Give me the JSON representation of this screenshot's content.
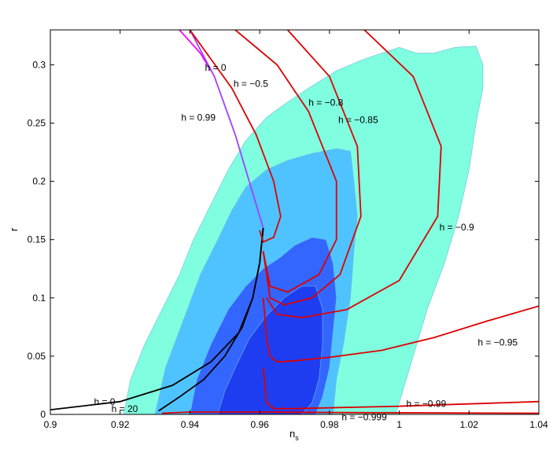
{
  "chart_data": {
    "type": "line",
    "title": "",
    "xlabel": {
      "base": "n",
      "sub": "s"
    },
    "ylabel": "r",
    "xlim": [
      0.9,
      1.04
    ],
    "ylim": [
      0,
      0.33
    ],
    "x_ticks": [
      "0.9",
      "0.92",
      "0.94",
      "0.96",
      "0.98",
      "1",
      "1.02",
      "1.04"
    ],
    "y_ticks": [
      "0",
      "0.05",
      "0.1",
      "0.15",
      "0.2",
      "0.25",
      "0.3"
    ],
    "grid": false,
    "confidence_regions": [
      {
        "level": "outer",
        "color": "#7fffe0",
        "points": [
          [
            0.921,
            0.0
          ],
          [
            0.923,
            0.03
          ],
          [
            0.927,
            0.06
          ],
          [
            0.932,
            0.09
          ],
          [
            0.937,
            0.12
          ],
          [
            0.941,
            0.15
          ],
          [
            0.946,
            0.18
          ],
          [
            0.951,
            0.21
          ],
          [
            0.956,
            0.235
          ],
          [
            0.962,
            0.255
          ],
          [
            0.968,
            0.268
          ],
          [
            0.974,
            0.28
          ],
          [
            0.982,
            0.295
          ],
          [
            0.99,
            0.305
          ],
          [
            0.997,
            0.312
          ],
          [
            1.0,
            0.315
          ],
          [
            1.005,
            0.31
          ],
          [
            1.01,
            0.31
          ],
          [
            1.016,
            0.315
          ],
          [
            1.022,
            0.316
          ],
          [
            1.024,
            0.3
          ],
          [
            1.024,
            0.28
          ],
          [
            1.022,
            0.25
          ],
          [
            1.02,
            0.21
          ],
          [
            1.017,
            0.17
          ],
          [
            1.013,
            0.13
          ],
          [
            1.008,
            0.09
          ],
          [
            1.004,
            0.05
          ],
          [
            1.001,
            0.02
          ],
          [
            0.999,
            0.0
          ]
        ]
      },
      {
        "level": "middle",
        "color": "#4fc3ff",
        "points": [
          [
            0.93,
            0.0
          ],
          [
            0.933,
            0.04
          ],
          [
            0.938,
            0.08
          ],
          [
            0.943,
            0.12
          ],
          [
            0.948,
            0.15
          ],
          [
            0.952,
            0.175
          ],
          [
            0.956,
            0.195
          ],
          [
            0.962,
            0.21
          ],
          [
            0.968,
            0.218
          ],
          [
            0.975,
            0.224
          ],
          [
            0.982,
            0.228
          ],
          [
            0.986,
            0.226
          ],
          [
            0.987,
            0.2
          ],
          [
            0.988,
            0.17
          ],
          [
            0.987,
            0.14
          ],
          [
            0.986,
            0.1
          ],
          [
            0.984,
            0.06
          ],
          [
            0.982,
            0.03
          ],
          [
            0.981,
            0.0
          ]
        ]
      },
      {
        "level": "inner-1",
        "color": "#3366ff",
        "points": [
          [
            0.94,
            0.0
          ],
          [
            0.942,
            0.03
          ],
          [
            0.946,
            0.06
          ],
          [
            0.951,
            0.09
          ],
          [
            0.956,
            0.11
          ],
          [
            0.961,
            0.125
          ],
          [
            0.966,
            0.135
          ],
          [
            0.97,
            0.145
          ],
          [
            0.975,
            0.152
          ],
          [
            0.979,
            0.15
          ],
          [
            0.981,
            0.13
          ],
          [
            0.982,
            0.1
          ],
          [
            0.981,
            0.07
          ],
          [
            0.98,
            0.04
          ],
          [
            0.978,
            0.015
          ],
          [
            0.976,
            0.0
          ]
        ]
      },
      {
        "level": "inner-2",
        "color": "#1f3df0",
        "points": [
          [
            0.948,
            0.0
          ],
          [
            0.95,
            0.02
          ],
          [
            0.953,
            0.04
          ],
          [
            0.957,
            0.065
          ],
          [
            0.962,
            0.085
          ],
          [
            0.967,
            0.1
          ],
          [
            0.972,
            0.11
          ],
          [
            0.976,
            0.11
          ],
          [
            0.978,
            0.09
          ],
          [
            0.978,
            0.06
          ],
          [
            0.977,
            0.03
          ],
          [
            0.975,
            0.01
          ],
          [
            0.972,
            0.0
          ]
        ]
      }
    ],
    "series": [
      {
        "name": "h = 0",
        "color": "#000000",
        "points": [
          [
            0.961,
            0.16
          ],
          [
            0.96,
            0.13
          ],
          [
            0.958,
            0.1
          ],
          [
            0.954,
            0.07
          ],
          [
            0.946,
            0.045
          ],
          [
            0.935,
            0.025
          ],
          [
            0.92,
            0.011
          ],
          [
            0.9,
            0.004
          ]
        ]
      },
      {
        "name": "h = 20",
        "color": "#000000",
        "points": [
          [
            0.961,
            0.16
          ],
          [
            0.96,
            0.13
          ],
          [
            0.958,
            0.1
          ],
          [
            0.955,
            0.075
          ],
          [
            0.95,
            0.05
          ],
          [
            0.944,
            0.03
          ],
          [
            0.937,
            0.015
          ],
          [
            0.931,
            0.003
          ]
        ]
      },
      {
        "name": "h = 0",
        "color": "#ff00ff",
        "points": [
          [
            0.937,
            0.33
          ],
          [
            0.943,
            0.31
          ],
          [
            0.946,
            0.295
          ]
        ]
      },
      {
        "name": "h = 0.99",
        "color": "#a040ff",
        "points": [
          [
            0.94,
            0.33
          ],
          [
            0.947,
            0.29
          ],
          [
            0.953,
            0.24
          ],
          [
            0.958,
            0.19
          ],
          [
            0.961,
            0.16
          ]
        ]
      },
      {
        "name": "h = −0.5",
        "color": "#dd0000",
        "points": [
          [
            0.94,
            0.33
          ],
          [
            0.952,
            0.28
          ],
          [
            0.959,
            0.24
          ],
          [
            0.964,
            0.2
          ],
          [
            0.966,
            0.17
          ],
          [
            0.964,
            0.152
          ],
          [
            0.961,
            0.148
          ],
          [
            0.96,
            0.158
          ]
        ]
      },
      {
        "name": "h = −0.8",
        "color": "#dd0000",
        "points": [
          [
            0.953,
            0.33
          ],
          [
            0.965,
            0.3
          ],
          [
            0.974,
            0.26
          ],
          [
            0.982,
            0.2
          ],
          [
            0.982,
            0.15
          ],
          [
            0.977,
            0.12
          ],
          [
            0.968,
            0.105
          ],
          [
            0.963,
            0.11
          ],
          [
            0.961,
            0.14
          ]
        ]
      },
      {
        "name": "h = −0.85",
        "color": "#dd0000",
        "points": [
          [
            0.968,
            0.33
          ],
          [
            0.98,
            0.29
          ],
          [
            0.988,
            0.23
          ],
          [
            0.989,
            0.17
          ],
          [
            0.983,
            0.12
          ],
          [
            0.975,
            0.1
          ],
          [
            0.967,
            0.094
          ],
          [
            0.963,
            0.1
          ],
          [
            0.961,
            0.14
          ]
        ]
      },
      {
        "name": "h = −0.9",
        "color": "#dd0000",
        "points": [
          [
            0.99,
            0.33
          ],
          [
            1.004,
            0.29
          ],
          [
            1.012,
            0.23
          ],
          [
            1.011,
            0.17
          ],
          [
            1.0,
            0.115
          ],
          [
            0.985,
            0.09
          ],
          [
            0.972,
            0.083
          ],
          [
            0.965,
            0.086
          ],
          [
            0.962,
            0.1
          ]
        ]
      },
      {
        "name": "h = −0.95",
        "color": "#dd0000",
        "points": [
          [
            1.04,
            0.093
          ],
          [
            1.025,
            0.08
          ],
          [
            1.01,
            0.066
          ],
          [
            0.995,
            0.055
          ],
          [
            0.98,
            0.049
          ],
          [
            0.97,
            0.046
          ],
          [
            0.965,
            0.045
          ],
          [
            0.963,
            0.05
          ],
          [
            0.962,
            0.065
          ],
          [
            0.961,
            0.1
          ]
        ]
      },
      {
        "name": "h = −0.99",
        "color": "#dd0000",
        "points": [
          [
            1.04,
            0.011
          ],
          [
            1.0,
            0.007
          ],
          [
            0.97,
            0.005
          ],
          [
            0.964,
            0.005
          ],
          [
            0.962,
            0.01
          ],
          [
            0.961,
            0.04
          ]
        ]
      },
      {
        "name": "h = −0.999",
        "color": "#dd0000",
        "points": [
          [
            1.04,
            0.001
          ],
          [
            0.99,
            0.0015
          ],
          [
            0.96,
            0.002
          ],
          [
            0.94,
            0.002
          ],
          [
            0.932,
            0.001
          ]
        ]
      }
    ],
    "labels": [
      {
        "text": "h = 0",
        "x": 0.9443,
        "y": 0.295
      },
      {
        "text": "h = −0.5",
        "x": 0.9525,
        "y": 0.281
      },
      {
        "text": "h = −0.8",
        "x": 0.974,
        "y": 0.265
      },
      {
        "text": "h = 0.99",
        "x": 0.9375,
        "y": 0.252
      },
      {
        "text": "h = −0.85",
        "x": 0.9825,
        "y": 0.25
      },
      {
        "text": "h = −0.9",
        "x": 1.0115,
        "y": 0.158
      },
      {
        "text": "h = −0.95",
        "x": 1.0225,
        "y": 0.059
      },
      {
        "text": "h = 0",
        "x": 0.9125,
        "y": 0.008
      },
      {
        "text": "h = 20",
        "x": 0.9175,
        "y": 0.002
      },
      {
        "text": "h = −0.99",
        "x": 1.002,
        "y": 0.0065
      },
      {
        "text": "h = −0.999",
        "x": 0.9835,
        "y": -0.005
      }
    ]
  }
}
